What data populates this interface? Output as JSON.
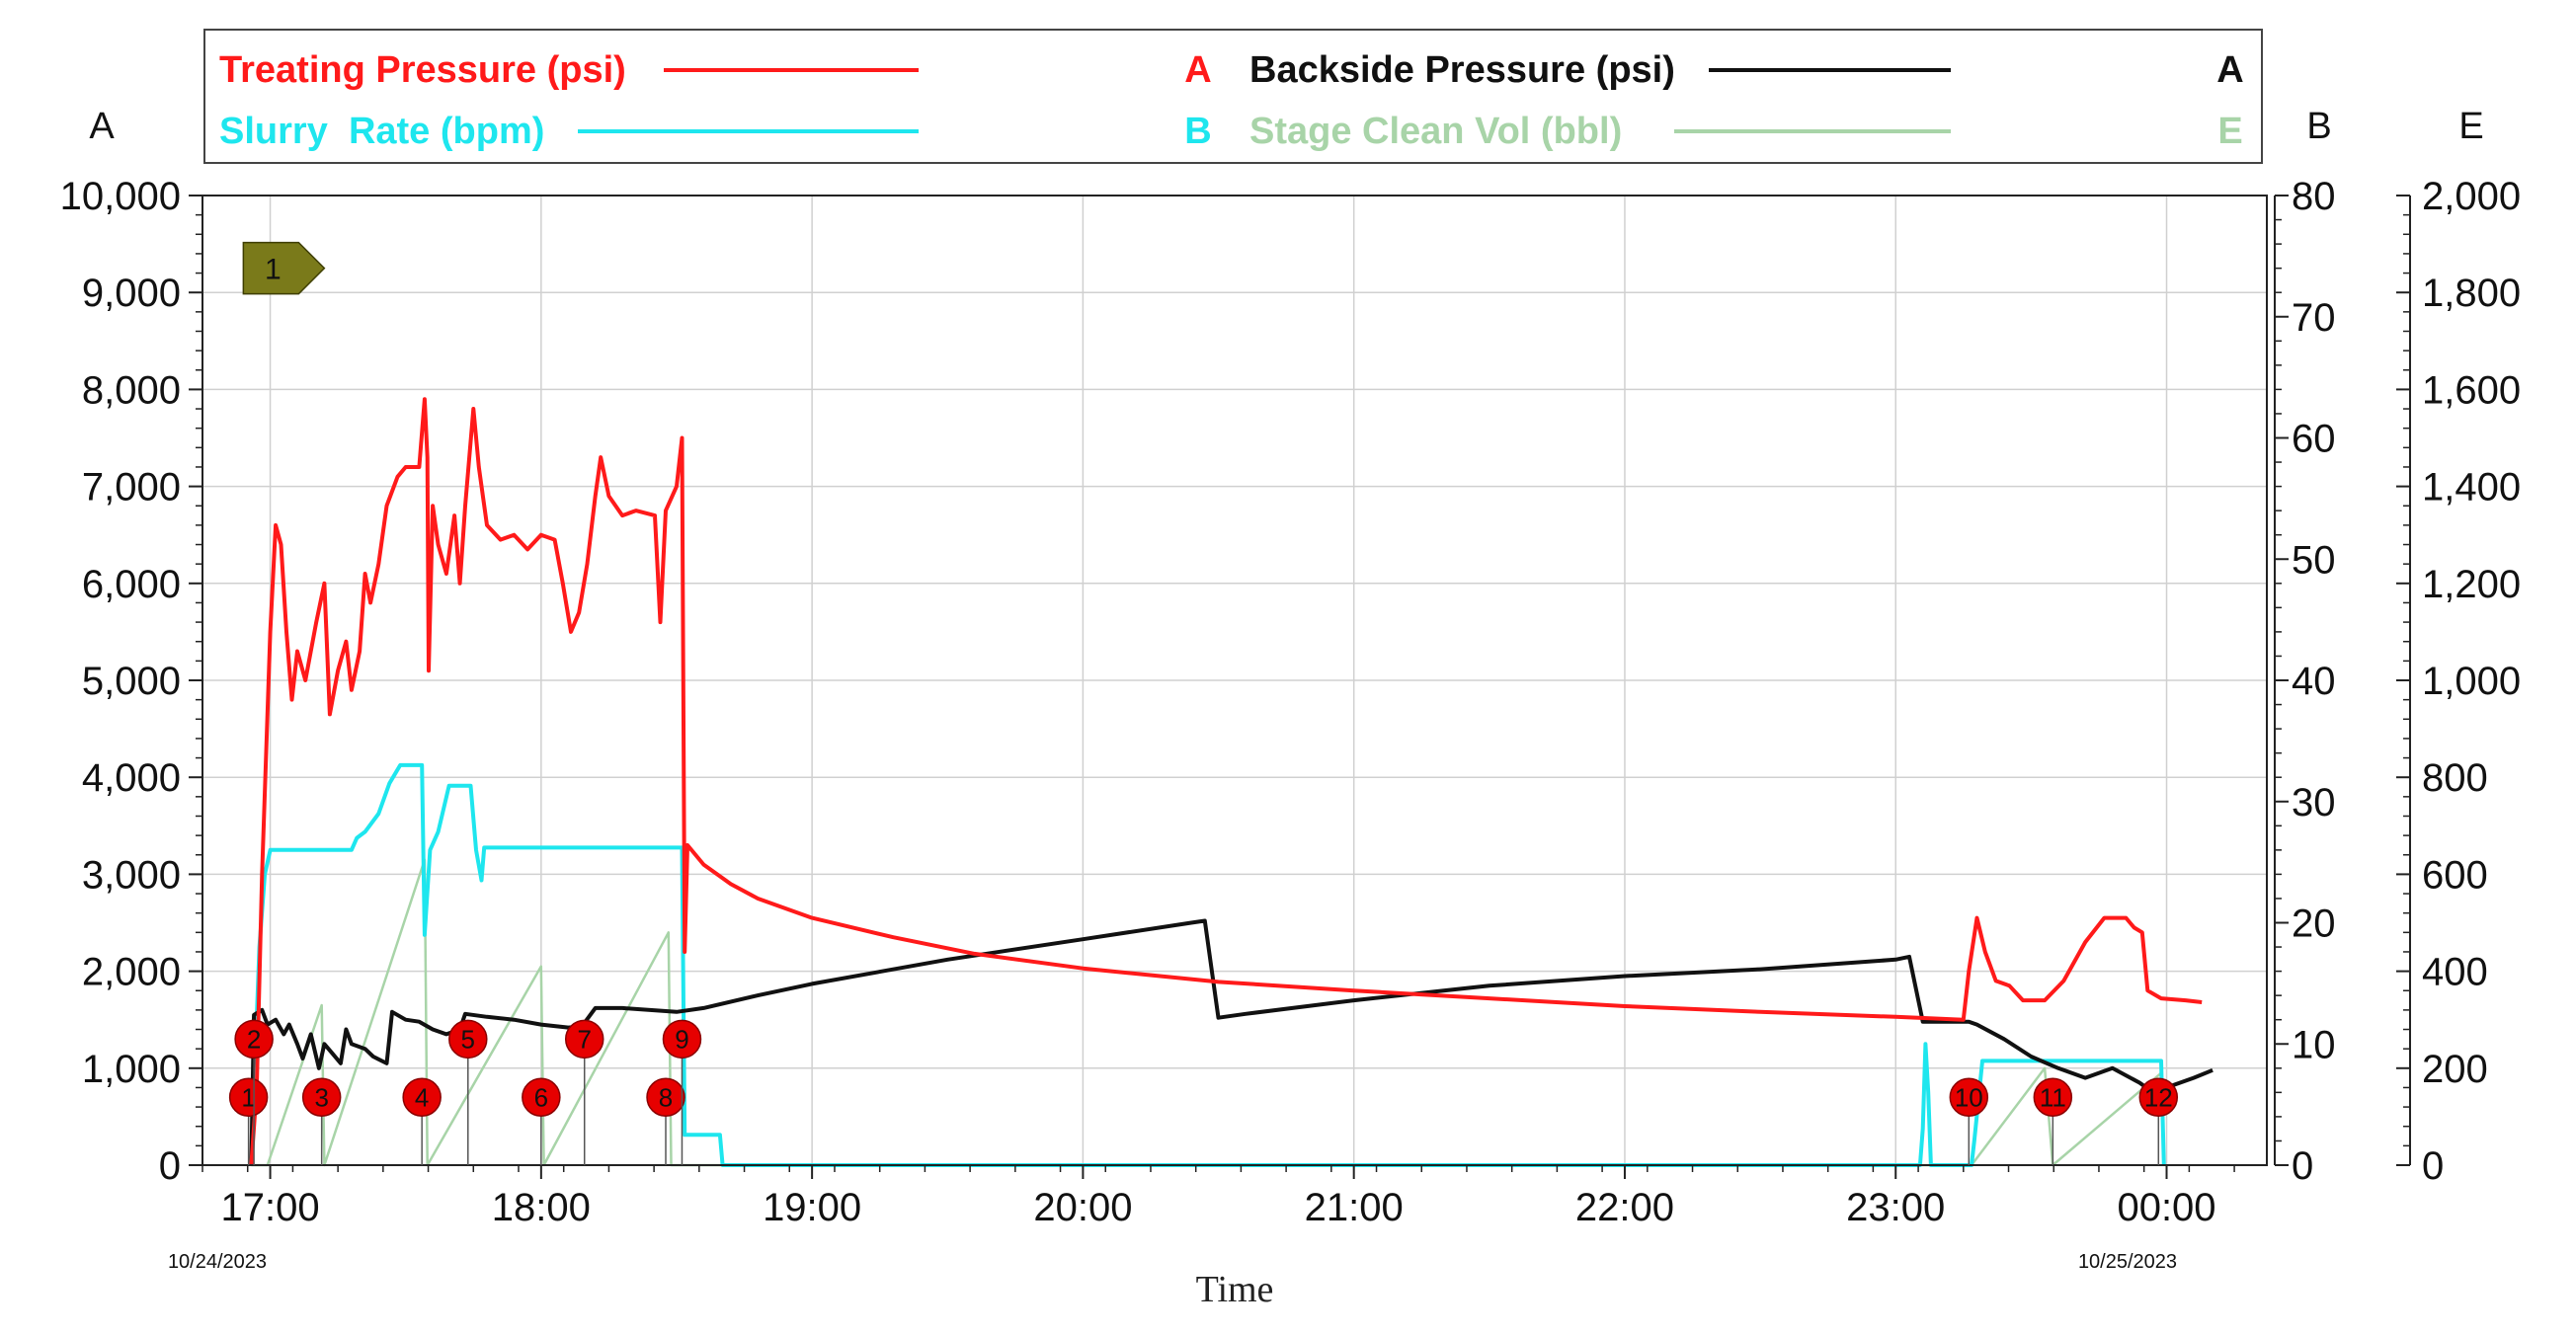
{
  "chart_data": {
    "type": "line",
    "xlabel": "Time",
    "x_start_date": "10/24/2023",
    "x_end_date": "10/25/2023",
    "x_ticks": [
      "17:00",
      "18:00",
      "19:00",
      "20:00",
      "21:00",
      "22:00",
      "23:00",
      "00:00"
    ],
    "axes": {
      "A": {
        "label": "A",
        "ylim": [
          0,
          10000
        ],
        "ticks": [
          "0",
          "1,000",
          "2,000",
          "3,000",
          "4,000",
          "5,000",
          "6,000",
          "7,000",
          "8,000",
          "9,000",
          "10,000"
        ]
      },
      "B": {
        "label": "B",
        "ylim": [
          0,
          80
        ],
        "ticks": [
          "0",
          "10",
          "20",
          "30",
          "40",
          "50",
          "60",
          "70",
          "80"
        ]
      },
      "E": {
        "label": "E",
        "ylim": [
          0,
          2000
        ],
        "ticks": [
          "0",
          "200",
          "400",
          "600",
          "800",
          "1,000",
          "1,200",
          "1,400",
          "1,600",
          "1,800",
          "2,000"
        ]
      }
    },
    "legend": [
      {
        "name": "Treating Pressure (psi)",
        "axis": "A",
        "color": "#ff1a1a"
      },
      {
        "name": "Backside Pressure (psi)",
        "axis": "A",
        "color": "#111111"
      },
      {
        "name": "Slurry  Rate (bpm)",
        "axis": "B",
        "color": "#1ee6ee"
      },
      {
        "name": "Stage Clean Vol (bbl)",
        "axis": "E",
        "color": "#a8d4a8"
      }
    ],
    "series": [
      {
        "name": "Treating Pressure (psi)",
        "axis": "A",
        "color": "#ff1a1a",
        "points": [
          [
            16.93,
            0
          ],
          [
            16.95,
            800
          ],
          [
            16.97,
            3000
          ],
          [
            17.0,
            5500
          ],
          [
            17.02,
            6600
          ],
          [
            17.04,
            6400
          ],
          [
            17.06,
            5500
          ],
          [
            17.08,
            4800
          ],
          [
            17.1,
            5300
          ],
          [
            17.13,
            5000
          ],
          [
            17.17,
            5600
          ],
          [
            17.2,
            6000
          ],
          [
            17.22,
            4650
          ],
          [
            17.25,
            5100
          ],
          [
            17.28,
            5400
          ],
          [
            17.3,
            4900
          ],
          [
            17.33,
            5300
          ],
          [
            17.35,
            6100
          ],
          [
            17.37,
            5800
          ],
          [
            17.4,
            6200
          ],
          [
            17.43,
            6800
          ],
          [
            17.47,
            7100
          ],
          [
            17.5,
            7200
          ],
          [
            17.55,
            7200
          ],
          [
            17.57,
            7900
          ],
          [
            17.58,
            7300
          ],
          [
            17.585,
            5100
          ],
          [
            17.6,
            6800
          ],
          [
            17.62,
            6400
          ],
          [
            17.65,
            6100
          ],
          [
            17.68,
            6700
          ],
          [
            17.7,
            6000
          ],
          [
            17.72,
            6800
          ],
          [
            17.75,
            7800
          ],
          [
            17.77,
            7200
          ],
          [
            17.8,
            6600
          ],
          [
            17.85,
            6450
          ],
          [
            17.9,
            6500
          ],
          [
            17.95,
            6350
          ],
          [
            18.0,
            6500
          ],
          [
            18.05,
            6450
          ],
          [
            18.08,
            6000
          ],
          [
            18.11,
            5500
          ],
          [
            18.14,
            5700
          ],
          [
            18.17,
            6200
          ],
          [
            18.2,
            6900
          ],
          [
            18.22,
            7300
          ],
          [
            18.25,
            6900
          ],
          [
            18.3,
            6700
          ],
          [
            18.35,
            6750
          ],
          [
            18.42,
            6700
          ],
          [
            18.44,
            5600
          ],
          [
            18.46,
            6750
          ],
          [
            18.5,
            7000
          ],
          [
            18.52,
            7500
          ],
          [
            18.53,
            2200
          ],
          [
            18.54,
            3300
          ],
          [
            18.6,
            3100
          ],
          [
            18.7,
            2900
          ],
          [
            18.8,
            2750
          ],
          [
            19.0,
            2550
          ],
          [
            19.3,
            2350
          ],
          [
            19.6,
            2180
          ],
          [
            20.0,
            2030
          ],
          [
            20.5,
            1890
          ],
          [
            21.0,
            1800
          ],
          [
            21.5,
            1720
          ],
          [
            22.0,
            1640
          ],
          [
            22.5,
            1580
          ],
          [
            23.0,
            1530
          ],
          [
            23.25,
            1500
          ],
          [
            23.27,
            2000
          ],
          [
            23.3,
            2550
          ],
          [
            23.33,
            2200
          ],
          [
            23.37,
            1900
          ],
          [
            23.42,
            1850
          ],
          [
            23.47,
            1700
          ],
          [
            23.55,
            1700
          ],
          [
            23.62,
            1900
          ],
          [
            23.7,
            2300
          ],
          [
            23.77,
            2550
          ],
          [
            23.85,
            2550
          ],
          [
            23.88,
            2450
          ],
          [
            23.91,
            2400
          ],
          [
            23.93,
            1800
          ],
          [
            23.98,
            1720
          ],
          [
            24.07,
            1700
          ],
          [
            24.13,
            1680
          ]
        ]
      },
      {
        "name": "Backside Pressure (psi)",
        "axis": "A",
        "color": "#111111",
        "points": [
          [
            16.93,
            0
          ],
          [
            16.94,
            1550
          ],
          [
            16.97,
            1600
          ],
          [
            16.99,
            1450
          ],
          [
            17.02,
            1500
          ],
          [
            17.05,
            1350
          ],
          [
            17.07,
            1450
          ],
          [
            17.1,
            1250
          ],
          [
            17.12,
            1100
          ],
          [
            17.15,
            1350
          ],
          [
            17.18,
            1000
          ],
          [
            17.2,
            1250
          ],
          [
            17.23,
            1150
          ],
          [
            17.26,
            1050
          ],
          [
            17.28,
            1400
          ],
          [
            17.3,
            1250
          ],
          [
            17.35,
            1200
          ],
          [
            17.38,
            1120
          ],
          [
            17.43,
            1050
          ],
          [
            17.45,
            1580
          ],
          [
            17.5,
            1500
          ],
          [
            17.55,
            1480
          ],
          [
            17.6,
            1400
          ],
          [
            17.65,
            1350
          ],
          [
            17.7,
            1400
          ],
          [
            17.72,
            1560
          ],
          [
            17.8,
            1530
          ],
          [
            17.9,
            1500
          ],
          [
            18.0,
            1450
          ],
          [
            18.1,
            1420
          ],
          [
            18.15,
            1430
          ],
          [
            18.2,
            1620
          ],
          [
            18.3,
            1620
          ],
          [
            18.5,
            1580
          ],
          [
            18.6,
            1620
          ],
          [
            18.8,
            1750
          ],
          [
            19.0,
            1870
          ],
          [
            19.5,
            2120
          ],
          [
            20.0,
            2330
          ],
          [
            20.4,
            2500
          ],
          [
            20.45,
            2520
          ],
          [
            20.5,
            1520
          ],
          [
            20.6,
            1560
          ],
          [
            21.0,
            1700
          ],
          [
            21.5,
            1850
          ],
          [
            22.0,
            1950
          ],
          [
            22.5,
            2020
          ],
          [
            23.0,
            2120
          ],
          [
            23.05,
            2150
          ],
          [
            23.1,
            1480
          ],
          [
            23.27,
            1480
          ],
          [
            23.3,
            1450
          ],
          [
            23.4,
            1300
          ],
          [
            23.5,
            1120
          ],
          [
            23.6,
            1000
          ],
          [
            23.7,
            900
          ],
          [
            23.8,
            1000
          ],
          [
            23.9,
            850
          ],
          [
            23.95,
            750
          ],
          [
            24.0,
            800
          ],
          [
            24.1,
            900
          ],
          [
            24.17,
            980
          ]
        ]
      },
      {
        "name": "Slurry  Rate (bpm)",
        "axis": "B",
        "color": "#1ee6ee",
        "points": [
          [
            16.93,
            0
          ],
          [
            16.94,
            6
          ],
          [
            16.96,
            18
          ],
          [
            16.98,
            24
          ],
          [
            17.0,
            26
          ],
          [
            17.3,
            26
          ],
          [
            17.32,
            27
          ],
          [
            17.35,
            27.5
          ],
          [
            17.4,
            29
          ],
          [
            17.44,
            31.5
          ],
          [
            17.48,
            33
          ],
          [
            17.56,
            33
          ],
          [
            17.57,
            19
          ],
          [
            17.59,
            26
          ],
          [
            17.62,
            27.5
          ],
          [
            17.66,
            31.3
          ],
          [
            17.74,
            31.3
          ],
          [
            17.76,
            26
          ],
          [
            17.78,
            23.5
          ],
          [
            17.79,
            26.2
          ],
          [
            18.52,
            26.2
          ],
          [
            18.53,
            2.5
          ],
          [
            18.66,
            2.5
          ],
          [
            18.67,
            0
          ],
          [
            23.09,
            0
          ],
          [
            23.1,
            3
          ],
          [
            23.11,
            10
          ],
          [
            23.12,
            6
          ],
          [
            23.13,
            0
          ],
          [
            23.28,
            0
          ],
          [
            23.29,
            2
          ],
          [
            23.32,
            8.6
          ],
          [
            23.98,
            8.6
          ],
          [
            23.99,
            0
          ]
        ]
      },
      {
        "name": "Stage Clean Vol (bbl)",
        "axis": "E",
        "color": "#a8d4a8",
        "points": [
          [
            16.93,
            0
          ],
          [
            16.99,
            0
          ],
          [
            17.19,
            330
          ],
          [
            17.2,
            0
          ],
          [
            17.57,
            630
          ],
          [
            17.58,
            0
          ],
          [
            18.0,
            410
          ],
          [
            18.01,
            0
          ],
          [
            18.47,
            480
          ],
          [
            18.48,
            0
          ],
          [
            23.28,
            0
          ],
          [
            23.55,
            200
          ],
          [
            23.58,
            0
          ],
          [
            23.98,
            190
          ],
          [
            23.99,
            0
          ]
        ]
      }
    ],
    "event_markers": [
      {
        "id": "1",
        "t": 16.92,
        "value_a": 700
      },
      {
        "id": "2",
        "t": 16.94,
        "value_a": 1300
      },
      {
        "id": "3",
        "t": 17.19,
        "value_a": 700
      },
      {
        "id": "4",
        "t": 17.56,
        "value_a": 700
      },
      {
        "id": "5",
        "t": 17.73,
        "value_a": 1300
      },
      {
        "id": "6",
        "t": 18.0,
        "value_a": 700
      },
      {
        "id": "7",
        "t": 18.16,
        "value_a": 1300
      },
      {
        "id": "8",
        "t": 18.46,
        "value_a": 700
      },
      {
        "id": "9",
        "t": 18.52,
        "value_a": 1300
      },
      {
        "id": "10",
        "t": 23.27,
        "value_a": 700
      },
      {
        "id": "11",
        "t": 23.58,
        "value_a": 700
      },
      {
        "id": "12",
        "t": 23.97,
        "value_a": 700
      }
    ],
    "flag_marker": {
      "id": "1",
      "t": 16.93,
      "value_a": 9250
    }
  },
  "colors": {
    "treating": "#ff1a1a",
    "backside": "#111111",
    "slurry": "#1ee6ee",
    "stage": "#a8d4a8",
    "marker_fill": "#e60000",
    "flag_fill": "#7a7a1a",
    "grid": "#d0d0d0"
  }
}
